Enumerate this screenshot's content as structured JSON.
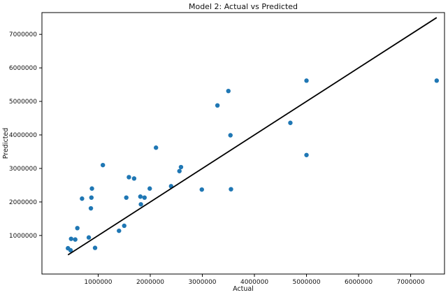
{
  "chart_data": {
    "type": "scatter",
    "title": "Model 2: Actual vs Predicted",
    "xlabel": "Actual",
    "ylabel": "Predicted",
    "xlim": [
      -80000,
      7650000
    ],
    "ylim": [
      -150000,
      7650000
    ],
    "x_ticks": [
      1000000,
      2000000,
      3000000,
      4000000,
      5000000,
      6000000,
      7000000
    ],
    "x_tick_labels": [
      "1000000",
      "2000000",
      "3000000",
      "4000000",
      "5000000",
      "6000000",
      "7000000"
    ],
    "y_ticks": [
      1000000,
      2000000,
      3000000,
      4000000,
      5000000,
      6000000,
      7000000
    ],
    "y_tick_labels": [
      "1000000",
      "2000000",
      "3000000",
      "4000000",
      "5000000",
      "6000000",
      "7000000"
    ],
    "grid": false,
    "series": [
      {
        "kind": "points",
        "color": "#1f77b4",
        "x": [
          420000,
          470000,
          480000,
          560000,
          600000,
          690000,
          820000,
          860000,
          870000,
          880000,
          940000,
          1090000,
          1400000,
          1500000,
          1540000,
          1590000,
          1690000,
          1810000,
          1820000,
          1890000,
          1990000,
          2110000,
          2400000,
          2560000,
          2590000,
          2990000,
          3290000,
          3500000,
          3540000,
          3550000,
          4690000,
          5000000,
          5000000,
          7500000
        ],
        "y": [
          620000,
          560000,
          900000,
          880000,
          1220000,
          2100000,
          940000,
          1810000,
          2130000,
          2400000,
          630000,
          3100000,
          1140000,
          1290000,
          2130000,
          2740000,
          2700000,
          2160000,
          1930000,
          2130000,
          2400000,
          3620000,
          2470000,
          2920000,
          3040000,
          2370000,
          4880000,
          5310000,
          3990000,
          2380000,
          4360000,
          5620000,
          3400000,
          5620000
        ]
      },
      {
        "kind": "line",
        "color": "#000000",
        "x": [
          420000,
          7500000
        ],
        "y": [
          420000,
          7500000
        ]
      }
    ]
  }
}
